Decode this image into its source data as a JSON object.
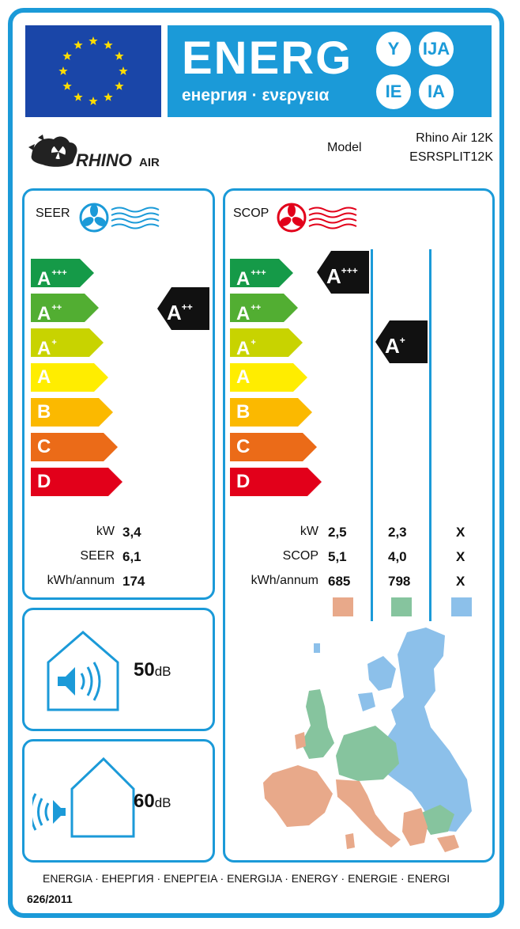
{
  "header": {
    "title": "ENERG",
    "subtitle": "енергия · ενεργεια",
    "lang_badges": [
      "Y",
      "IJA",
      "IE",
      "IA"
    ]
  },
  "brand": {
    "logo_text": "RHINOAIR"
  },
  "model": {
    "label": "Model",
    "name": "Rhino Air 12K",
    "code": "ESRSPLIT12K"
  },
  "seer": {
    "title": "SEER",
    "classes": [
      {
        "letter": "A",
        "sup": "+++",
        "color": "#159a48"
      },
      {
        "letter": "A",
        "sup": "++",
        "color": "#52ae32"
      },
      {
        "letter": "A",
        "sup": "+",
        "color": "#c8d300"
      },
      {
        "letter": "A",
        "sup": "",
        "color": "#ffed00"
      },
      {
        "letter": "B",
        "sup": "",
        "color": "#fbb900"
      },
      {
        "letter": "C",
        "sup": "",
        "color": "#eb6b18"
      },
      {
        "letter": "D",
        "sup": "",
        "color": "#e2001a"
      }
    ],
    "rating": {
      "letter": "A",
      "sup": "++"
    },
    "rows": [
      {
        "label": "kW",
        "value": "3,4"
      },
      {
        "label": "SEER",
        "value": "6,1"
      },
      {
        "label": "kWh/annum",
        "value": "174"
      }
    ]
  },
  "scop": {
    "title": "SCOP",
    "classes": [
      {
        "letter": "A",
        "sup": "+++",
        "color": "#159a48"
      },
      {
        "letter": "A",
        "sup": "++",
        "color": "#52ae32"
      },
      {
        "letter": "A",
        "sup": "+",
        "color": "#c8d300"
      },
      {
        "letter": "A",
        "sup": "",
        "color": "#ffed00"
      },
      {
        "letter": "B",
        "sup": "",
        "color": "#fbb900"
      },
      {
        "letter": "C",
        "sup": "",
        "color": "#eb6b18"
      },
      {
        "letter": "D",
        "sup": "",
        "color": "#e2001a"
      }
    ],
    "ratings": [
      {
        "letter": "A",
        "sup": "+++"
      },
      {
        "letter": "A",
        "sup": "+"
      }
    ],
    "rows": [
      {
        "label": "kW",
        "values": [
          "2,5",
          "2,3",
          "X"
        ]
      },
      {
        "label": "SCOP",
        "values": [
          "5,1",
          "4,0",
          "X"
        ]
      },
      {
        "label": "kWh/annum",
        "values": [
          "685",
          "798",
          "X"
        ]
      }
    ],
    "zone_colors": [
      "#e8a98a",
      "#86c49e",
      "#8cc0ea"
    ]
  },
  "noise": {
    "indoor": {
      "value": "50",
      "unit": "dB"
    },
    "outdoor": {
      "value": "60",
      "unit": "dB"
    }
  },
  "footer": {
    "languages": "ENERGIA · ЕНЕРГИЯ · ΕΝΕΡΓΕΙΑ · ENERGIJA · ENERGY · ENERGIE · ENERGI",
    "regulation": "626/2011"
  },
  "colors": {
    "accent": "#1b9ad8",
    "eu_blue": "#1a46a8",
    "eu_star": "#ffdd00"
  }
}
